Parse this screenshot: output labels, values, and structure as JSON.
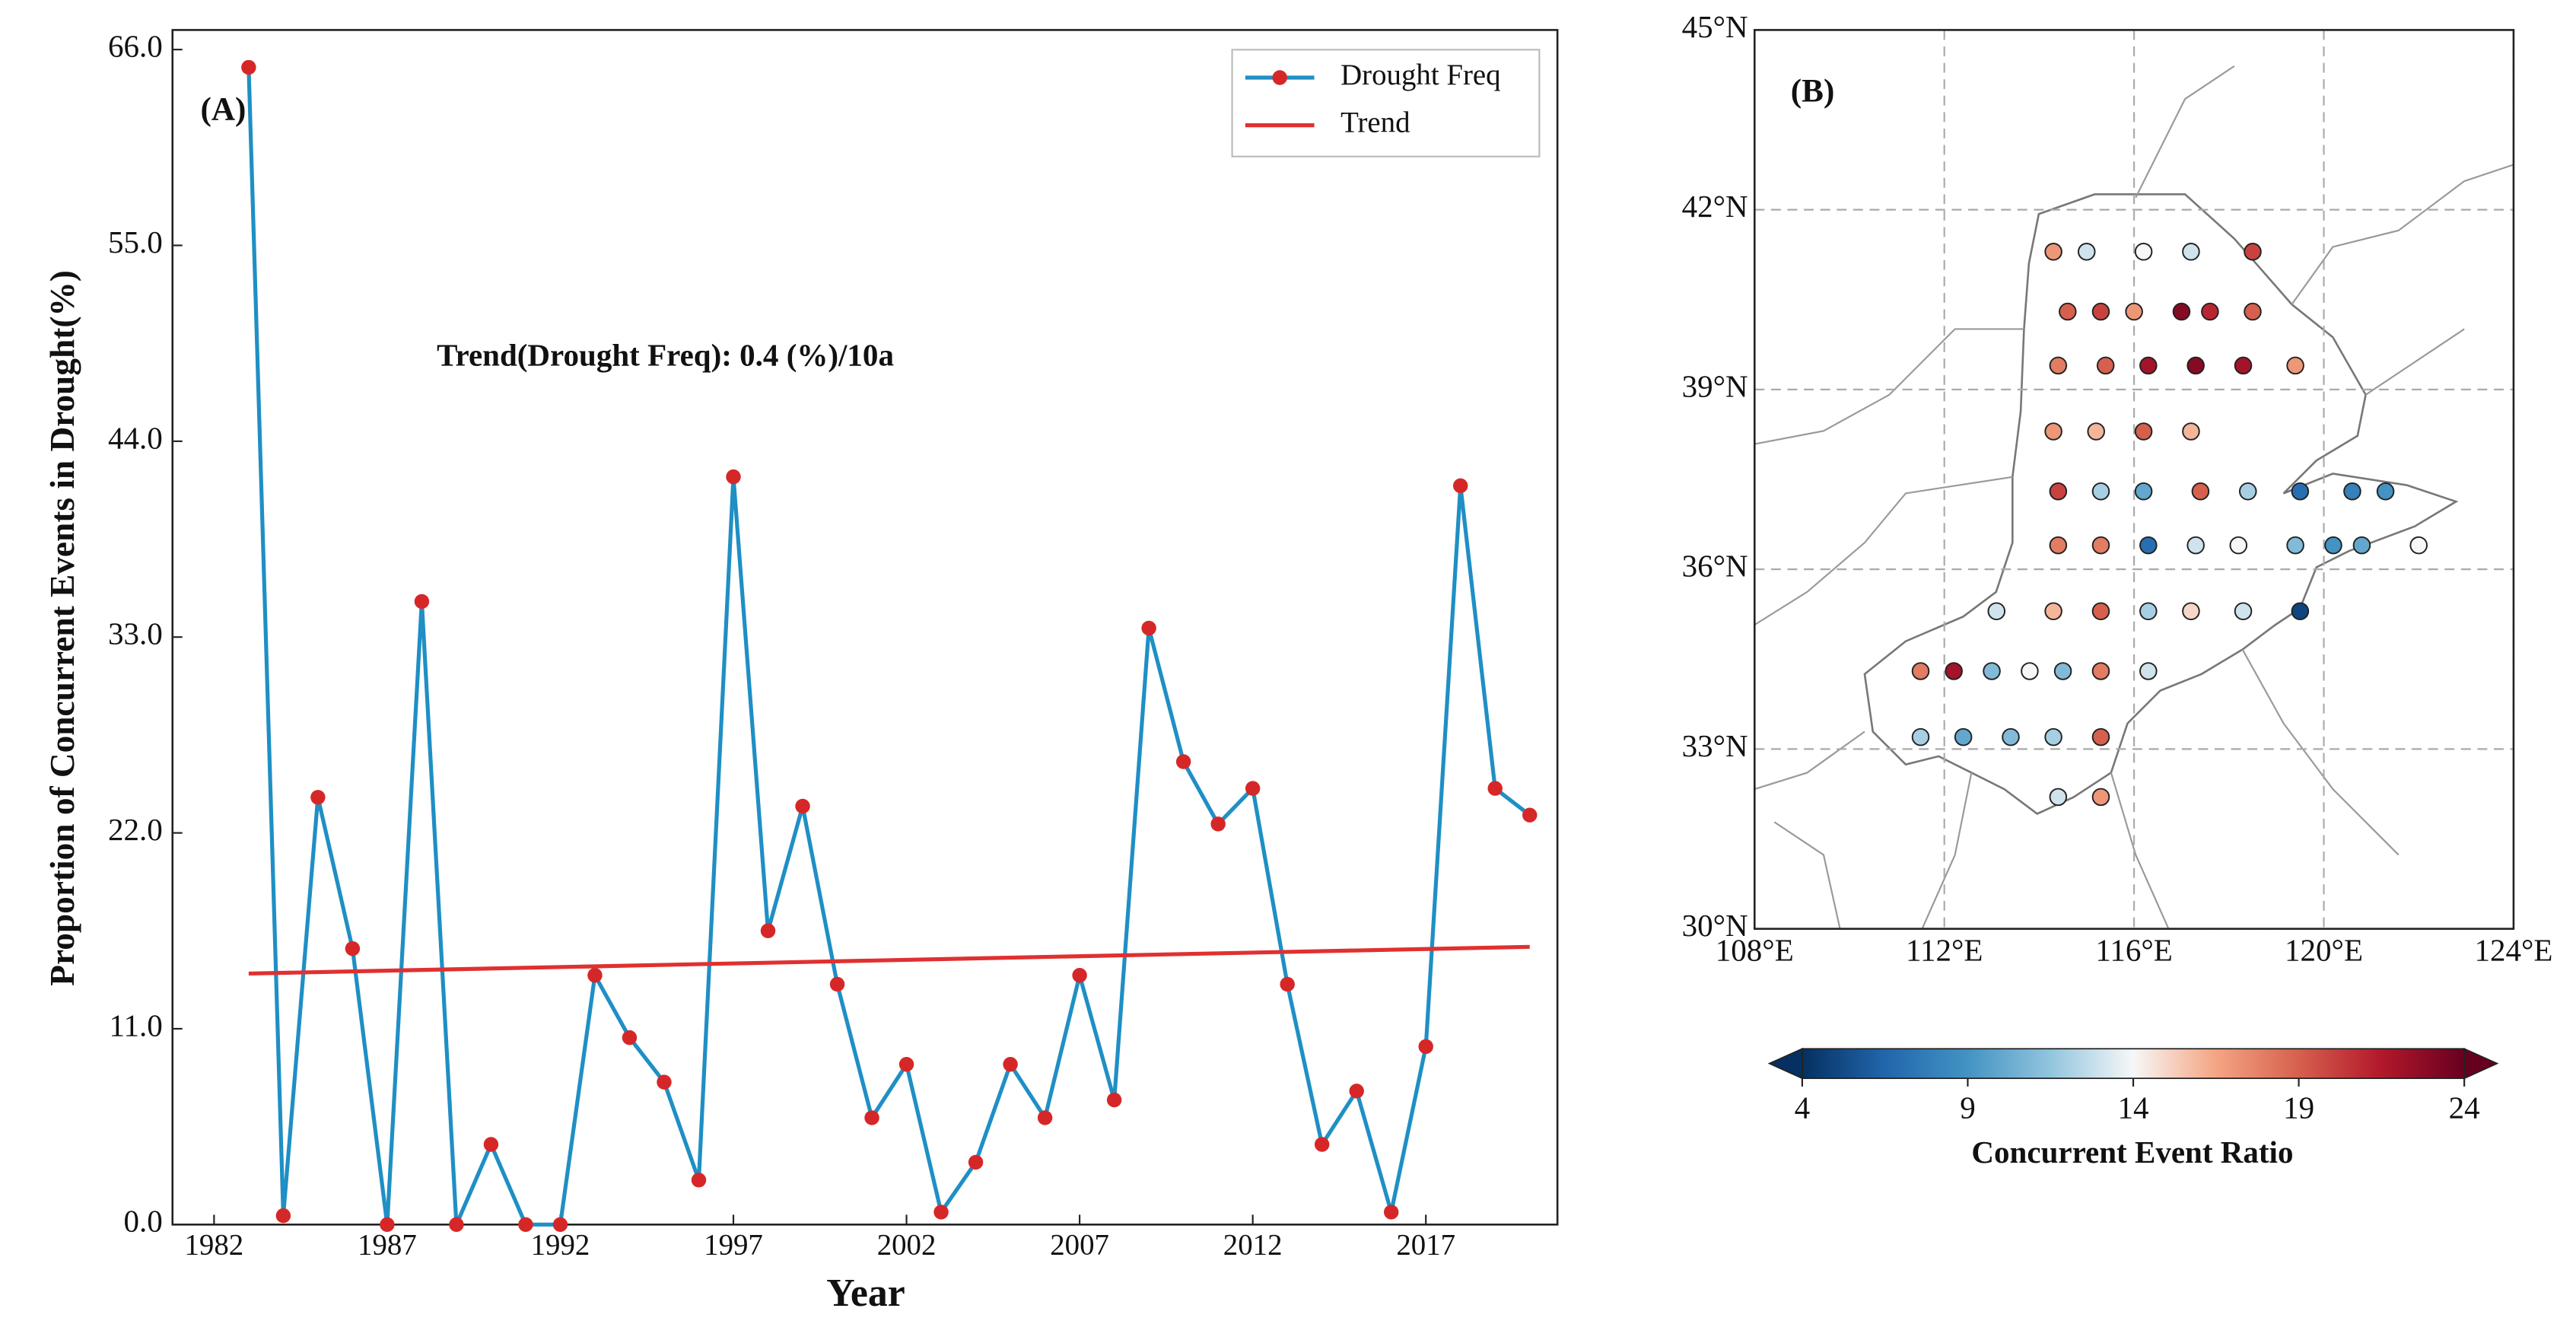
{
  "chart_data": [
    {
      "type": "line",
      "panel_label": "(A)",
      "annotation": "Trend(Drought Freq): 0.4 (%)/10a",
      "xlabel": "Year",
      "ylabel": "Proportion of Concurrent Events in Drought(%)",
      "x": [
        1983,
        1984,
        1985,
        1986,
        1987,
        1988,
        1989,
        1990,
        1991,
        1992,
        1993,
        1994,
        1995,
        1996,
        1997,
        1998,
        1999,
        2000,
        2001,
        2002,
        2003,
        2004,
        2005,
        2006,
        2007,
        2008,
        2009,
        2010,
        2011,
        2012,
        2013,
        2014,
        2015,
        2016,
        2017,
        2018,
        2019,
        2020
      ],
      "series": [
        {
          "name": "Drought Freq",
          "color": "#1f8fc5",
          "marker_color": "#d62728",
          "values": [
            65,
            0.5,
            24,
            15.5,
            0,
            35,
            0,
            4.5,
            0,
            0,
            14,
            10.5,
            8,
            2.5,
            42,
            16.5,
            23.5,
            13.5,
            6,
            9,
            0.7,
            3.5,
            9,
            6,
            14,
            7,
            33.5,
            26,
            22.5,
            24.5,
            13.5,
            4.5,
            7.5,
            0.7,
            10,
            41.5,
            24.5,
            23
          ]
        },
        {
          "name": "Trend",
          "color": "#e03030",
          "x": [
            1983,
            2020
          ],
          "values": [
            14.1,
            15.6
          ]
        }
      ],
      "xlim": [
        1980.8,
        2020.8
      ],
      "ylim": [
        0,
        67.1
      ],
      "xticks": [
        1982,
        1987,
        1992,
        1997,
        2002,
        2007,
        2012,
        2017
      ],
      "yticks": [
        {
          "value": 0,
          "label": "0.0"
        },
        {
          "value": 11,
          "label": "11.0"
        },
        {
          "value": 22,
          "label": "22.0"
        },
        {
          "value": 33,
          "label": "33.0"
        },
        {
          "value": 44,
          "label": "44.0"
        },
        {
          "value": 55,
          "label": "55.0"
        },
        {
          "value": 66,
          "label": "66.0"
        }
      ],
      "legend": "upper right"
    },
    {
      "type": "scatter",
      "panel_label": "(B)",
      "colorbar_label": "Concurrent Event Ratio",
      "xlim": [
        108,
        124
      ],
      "ylim": [
        30,
        45
      ],
      "xticks": [
        {
          "value": 108,
          "label": "108°E"
        },
        {
          "value": 112,
          "label": "112°E"
        },
        {
          "value": 116,
          "label": "116°E"
        },
        {
          "value": 120,
          "label": "120°E"
        },
        {
          "value": 124,
          "label": "124°E"
        }
      ],
      "yticks": [
        {
          "value": 30,
          "label": "30°N"
        },
        {
          "value": 33,
          "label": "33°N"
        },
        {
          "value": 36,
          "label": "36°N"
        },
        {
          "value": 39,
          "label": "39°N"
        },
        {
          "value": 42,
          "label": "42°N"
        },
        {
          "value": 45,
          "label": "45°N"
        }
      ],
      "grid": true,
      "clim": [
        4,
        24
      ],
      "cticks": [
        4,
        9,
        14,
        19,
        24
      ],
      "cmap_colors": [
        "#053061",
        "#2166ac",
        "#4393c3",
        "#92c5de",
        "#f7f7f7",
        "#f4a582",
        "#d6604d",
        "#b2182b",
        "#67001f"
      ],
      "x": [
        114.3,
        115,
        116.2,
        117.2,
        118.5,
        114.6,
        115.3,
        116,
        117,
        117.6,
        118.5,
        114.4,
        115.4,
        116.3,
        117.3,
        118.3,
        119.4,
        114.3,
        115.2,
        116.2,
        117.2,
        114.4,
        115.3,
        116.2,
        117.4,
        118.4,
        119.5,
        120.6,
        121.3,
        114.4,
        115.3,
        116.3,
        117.3,
        118.2,
        119.4,
        120.2,
        120.8,
        122,
        113.1,
        114.3,
        115.3,
        116.3,
        117.2,
        118.3,
        119.5,
        111.5,
        112.2,
        113,
        113.8,
        114.5,
        115.3,
        116.3,
        111.5,
        112.4,
        113.4,
        114.3,
        115.3,
        114.4,
        115.3
      ],
      "y": [
        41.3,
        41.3,
        41.3,
        41.3,
        41.3,
        40.3,
        40.3,
        40.3,
        40.3,
        40.3,
        40.3,
        39.4,
        39.4,
        39.4,
        39.4,
        39.4,
        39.4,
        38.3,
        38.3,
        38.3,
        38.3,
        37.3,
        37.3,
        37.3,
        37.3,
        37.3,
        37.3,
        37.3,
        37.3,
        36.4,
        36.4,
        36.4,
        36.4,
        36.4,
        36.4,
        36.4,
        36.4,
        36.4,
        35.3,
        35.3,
        35.3,
        35.3,
        35.3,
        35.3,
        35.3,
        34.3,
        34.3,
        34.3,
        34.3,
        34.3,
        34.3,
        34.3,
        33.2,
        33.2,
        33.2,
        33.2,
        33.2,
        32.2,
        32.2
      ],
      "values": [
        17,
        13,
        14,
        13,
        20,
        19,
        20,
        17,
        23,
        21,
        19,
        18,
        19,
        22,
        23,
        22,
        17,
        17,
        16,
        19,
        16,
        20,
        12,
        10,
        19,
        12,
        7,
        8,
        9,
        18,
        18,
        7,
        13,
        14,
        11,
        9,
        10,
        14,
        13,
        16,
        19,
        12,
        15,
        13,
        5,
        18,
        22,
        11,
        14,
        11,
        18,
        13,
        12,
        10,
        11,
        12,
        19,
        13,
        17
      ]
    }
  ]
}
